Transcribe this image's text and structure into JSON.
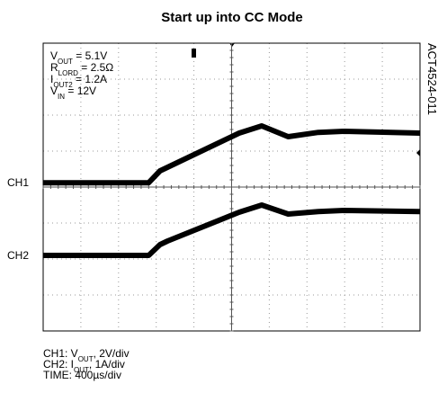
{
  "chart_data": {
    "type": "line",
    "title": "Start up into CC Mode",
    "side_label": "ACT4524-011",
    "annotations": [
      [
        {
          "t": "V"
        },
        {
          "sub": "OUT"
        },
        {
          "t": " = 5.1V"
        }
      ],
      [
        {
          "t": "R"
        },
        {
          "sub": "LORD"
        },
        {
          "t": " = 2.5Ω"
        }
      ],
      [
        {
          "t": "I"
        },
        {
          "sub": "OUT2"
        },
        {
          "t": " = 1.2A"
        }
      ],
      [
        {
          "t": "V"
        },
        {
          "sub": "IN"
        },
        {
          "t": " = 12V"
        }
      ]
    ],
    "captions": [
      [
        {
          "t": "CH1: V"
        },
        {
          "sub": "OUT"
        },
        {
          "t": ", 2V/div"
        }
      ],
      [
        {
          "t": "CH2: I"
        },
        {
          "sub": "OUT"
        },
        {
          "t": ", 1A/div"
        }
      ],
      [
        {
          "t": "TIME: 400µs/div"
        }
      ]
    ],
    "x": [
      0,
      2.8,
      3.1,
      3.3,
      5.2,
      5.8,
      6.5,
      7.3,
      8.0,
      10
    ],
    "series": [
      {
        "name": "CH1",
        "color": "#000000",
        "values": [
          4.12,
          4.12,
          4.45,
          4.55,
          5.5,
          5.7,
          5.4,
          5.52,
          5.55,
          5.5
        ]
      },
      {
        "name": "CH2",
        "color": "#000000",
        "values": [
          2.1,
          2.1,
          2.4,
          2.5,
          3.3,
          3.5,
          3.25,
          3.32,
          3.35,
          3.32
        ]
      }
    ],
    "xlim": [
      0,
      10
    ],
    "ylim": [
      0,
      8
    ],
    "xticks": [
      0,
      1,
      2,
      3,
      4,
      5,
      6,
      7,
      8,
      9,
      10
    ],
    "yticks": [
      0,
      1,
      2,
      3,
      4,
      5,
      6,
      7,
      8
    ],
    "grid": true
  }
}
